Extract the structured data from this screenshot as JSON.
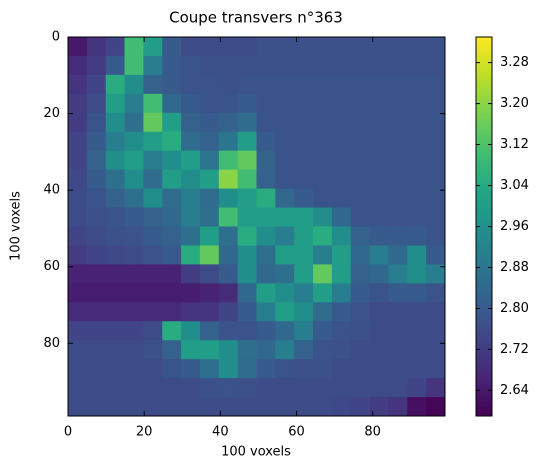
{
  "chart_data": {
    "type": "heatmap",
    "title": "Coupe transvers n°363",
    "xlabel": "100 voxels",
    "ylabel": "100 voxels",
    "xlim": [
      0,
      99
    ],
    "ylim": [
      0,
      99
    ],
    "y_inverted": true,
    "xticks": [
      0,
      20,
      40,
      60,
      80
    ],
    "yticks": [
      0,
      20,
      40,
      60,
      80
    ],
    "colormap": "viridis",
    "clim": [
      2.59,
      3.33
    ],
    "cticks": [
      2.64,
      2.72,
      {
        "value": 2.8,
        "label": "2.80"
      },
      2.88,
      2.96,
      3.04,
      3.12,
      {
        "value": 3.2,
        "label": "3.20"
      },
      3.28
    ],
    "z": [
      [
        2.64,
        2.7,
        2.74,
        3.1,
        3.0,
        2.8,
        2.76,
        2.76,
        2.76,
        2.76,
        2.77,
        2.77,
        2.77,
        2.77,
        2.77,
        2.77,
        2.77,
        2.77,
        2.77,
        2.77
      ],
      [
        2.68,
        2.72,
        2.8,
        3.1,
        2.9,
        2.8,
        2.78,
        2.77,
        2.77,
        2.77,
        2.77,
        2.77,
        2.77,
        2.77,
        2.77,
        2.77,
        2.77,
        2.77,
        2.77,
        2.77
      ],
      [
        2.7,
        2.74,
        3.05,
        2.95,
        2.82,
        2.8,
        2.78,
        2.78,
        2.77,
        2.78,
        2.78,
        2.78,
        2.78,
        2.78,
        2.78,
        2.78,
        2.78,
        2.78,
        2.78,
        2.78
      ],
      [
        2.72,
        2.76,
        3.0,
        2.9,
        3.1,
        2.84,
        2.8,
        2.78,
        2.78,
        2.8,
        2.78,
        2.78,
        2.78,
        2.78,
        2.78,
        2.78,
        2.78,
        2.78,
        2.78,
        2.78
      ],
      [
        2.72,
        2.78,
        2.95,
        2.86,
        3.15,
        3.0,
        2.82,
        2.8,
        2.82,
        2.85,
        2.78,
        2.78,
        2.78,
        2.78,
        2.78,
        2.78,
        2.78,
        2.78,
        2.78,
        2.78
      ],
      [
        2.74,
        2.8,
        2.9,
        2.95,
        3.0,
        3.05,
        2.85,
        2.82,
        2.88,
        3.0,
        2.8,
        2.78,
        2.78,
        2.78,
        2.78,
        2.78,
        2.78,
        2.78,
        2.78,
        2.78
      ],
      [
        2.74,
        2.82,
        2.95,
        3.0,
        2.9,
        2.95,
        3.0,
        2.88,
        3.1,
        3.15,
        2.82,
        2.78,
        2.78,
        2.78,
        2.78,
        2.78,
        2.78,
        2.78,
        2.78,
        2.78
      ],
      [
        2.75,
        2.8,
        2.86,
        2.95,
        2.85,
        3.0,
        2.95,
        3.0,
        3.2,
        3.1,
        2.82,
        2.78,
        2.78,
        2.78,
        2.78,
        2.78,
        2.78,
        2.78,
        2.78,
        2.78
      ],
      [
        2.76,
        2.78,
        2.82,
        2.86,
        2.95,
        2.85,
        2.9,
        2.85,
        2.95,
        3.0,
        3.05,
        2.84,
        2.8,
        2.78,
        2.78,
        2.78,
        2.78,
        2.78,
        2.78,
        2.78
      ],
      [
        2.76,
        2.77,
        2.78,
        2.8,
        2.82,
        2.84,
        2.9,
        2.86,
        3.1,
        3.0,
        3.0,
        3.0,
        3.0,
        2.95,
        2.84,
        2.78,
        2.78,
        2.78,
        2.78,
        2.78
      ],
      [
        2.74,
        2.76,
        2.77,
        2.78,
        2.8,
        2.82,
        2.86,
        3.0,
        2.86,
        3.05,
        2.95,
        2.9,
        3.0,
        3.05,
        2.95,
        2.82,
        2.8,
        2.8,
        2.8,
        2.78
      ],
      [
        2.72,
        2.74,
        2.75,
        2.76,
        2.78,
        2.8,
        3.05,
        3.15,
        2.84,
        2.95,
        2.86,
        3.0,
        3.0,
        2.9,
        3.0,
        2.84,
        2.9,
        2.84,
        2.95,
        2.8
      ],
      [
        2.66,
        2.66,
        2.66,
        2.66,
        2.66,
        2.66,
        2.72,
        2.76,
        2.8,
        2.95,
        2.84,
        2.86,
        3.0,
        3.15,
        3.0,
        2.82,
        2.84,
        2.9,
        2.95,
        2.9
      ],
      [
        2.65,
        2.65,
        2.65,
        2.65,
        2.65,
        2.65,
        2.65,
        2.66,
        2.68,
        2.84,
        3.0,
        2.95,
        2.9,
        3.0,
        2.9,
        2.8,
        2.78,
        2.8,
        2.8,
        2.78
      ],
      [
        2.68,
        2.68,
        2.68,
        2.68,
        2.68,
        2.68,
        2.7,
        2.7,
        2.74,
        2.8,
        2.9,
        3.0,
        2.95,
        2.85,
        2.8,
        2.78,
        2.76,
        2.76,
        2.76,
        2.76
      ],
      [
        2.74,
        2.74,
        2.74,
        2.74,
        2.76,
        3.05,
        2.95,
        2.82,
        2.78,
        2.78,
        2.8,
        2.84,
        2.9,
        2.8,
        2.78,
        2.77,
        2.76,
        2.76,
        2.76,
        2.76
      ],
      [
        2.76,
        2.76,
        2.76,
        2.76,
        2.77,
        2.82,
        3.0,
        3.0,
        2.95,
        2.86,
        2.84,
        2.9,
        2.82,
        2.78,
        2.77,
        2.76,
        2.76,
        2.76,
        2.76,
        2.76
      ],
      [
        2.76,
        2.76,
        2.76,
        2.76,
        2.76,
        2.78,
        2.8,
        2.86,
        2.95,
        2.85,
        2.8,
        2.78,
        2.77,
        2.77,
        2.76,
        2.76,
        2.76,
        2.76,
        2.76,
        2.76
      ],
      [
        2.76,
        2.76,
        2.76,
        2.76,
        2.76,
        2.76,
        2.76,
        2.77,
        2.78,
        2.77,
        2.76,
        2.76,
        2.76,
        2.76,
        2.76,
        2.76,
        2.76,
        2.76,
        2.74,
        2.7
      ],
      [
        2.76,
        2.76,
        2.76,
        2.76,
        2.76,
        2.76,
        2.76,
        2.76,
        2.76,
        2.76,
        2.76,
        2.76,
        2.76,
        2.76,
        2.75,
        2.74,
        2.72,
        2.7,
        2.62,
        2.6
      ]
    ]
  }
}
